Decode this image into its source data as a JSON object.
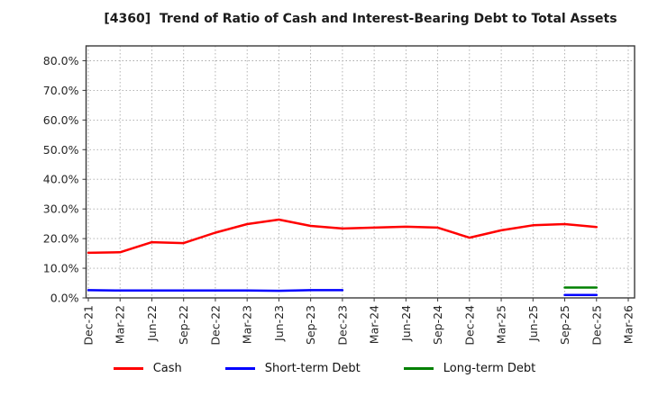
{
  "title": "[4360]  Trend of Ratio of Cash and Interest-Bearing Debt to Total Assets",
  "chart_data": {
    "type": "line",
    "title": "[4360]  Trend of Ratio of Cash and Interest-Bearing Debt to Total Assets",
    "categories": [
      "Dec-21",
      "Mar-22",
      "Jun-22",
      "Sep-22",
      "Dec-22",
      "Mar-23",
      "Jun-23",
      "Sep-23",
      "Dec-23",
      "Mar-24",
      "Jun-24",
      "Sep-24",
      "Dec-24",
      "Mar-25",
      "Jun-25",
      "Sep-25",
      "Dec-25",
      "Mar-26"
    ],
    "series": [
      {
        "name": "Cash",
        "color": "#ff0000",
        "values": [
          15.2,
          15.4,
          18.8,
          18.5,
          22.0,
          24.9,
          26.4,
          24.3,
          23.4,
          23.7,
          24.0,
          23.7,
          20.3,
          22.8,
          24.5,
          24.9,
          23.9,
          null
        ]
      },
      {
        "name": "Short-term Debt",
        "color": "#0000ff",
        "values": [
          2.6,
          2.5,
          2.5,
          2.5,
          2.5,
          2.5,
          2.4,
          2.6,
          2.6,
          null,
          null,
          null,
          null,
          null,
          null,
          1.0,
          1.0,
          null
        ]
      },
      {
        "name": "Long-term Debt",
        "color": "#008000",
        "values": [
          null,
          null,
          null,
          null,
          null,
          null,
          null,
          null,
          null,
          null,
          null,
          null,
          null,
          null,
          null,
          3.5,
          3.5,
          null
        ]
      }
    ],
    "xlabel": "",
    "ylabel": "",
    "ylim": [
      0,
      85
    ],
    "yticks": [
      0,
      10,
      20,
      30,
      40,
      50,
      60,
      70,
      80
    ],
    "ytick_suffix": "%",
    "grid": true,
    "legend_position": "bottom",
    "colors": {
      "frame": "#3a3a3a",
      "gridline": "#aaaaaa",
      "tick_label": "#262626",
      "background": "#ffffff"
    }
  }
}
